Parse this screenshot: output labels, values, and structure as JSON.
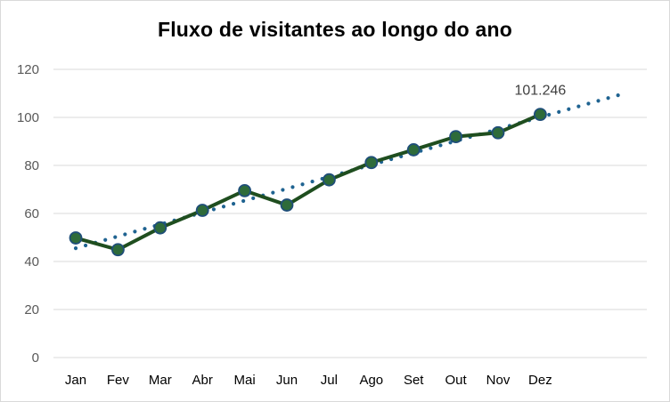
{
  "chart_data": {
    "type": "line",
    "title": "Fluxo de visitantes ao longo do ano",
    "xlabel": "",
    "ylabel": "",
    "categories": [
      "Jan",
      "Fev",
      "Mar",
      "Abr",
      "Mai",
      "Jun",
      "Jul",
      "Ago",
      "Set",
      "Out",
      "Nov",
      "Dez"
    ],
    "series": [
      {
        "values": [
          49.8,
          44.9,
          54.0,
          61.3,
          69.5,
          63.5,
          74.0,
          81.2,
          86.5,
          92.0,
          93.6,
          101.246
        ],
        "color": "#1f4e1f",
        "marker_fill": "#2e6b3a",
        "marker_stroke": "#1f4e79"
      }
    ],
    "trendline": {
      "type": "linear",
      "style": "dotted",
      "color": "#1f6391",
      "forward_periods": 2,
      "start": [
        0,
        45.5
      ],
      "end": [
        13,
        110.0
      ]
    },
    "data_labels": [
      {
        "index": 11,
        "text": "101.246"
      }
    ],
    "ylim": [
      0,
      120
    ],
    "yticks": [
      0,
      20,
      40,
      60,
      80,
      100,
      120
    ],
    "grid": true,
    "legend": "none"
  }
}
